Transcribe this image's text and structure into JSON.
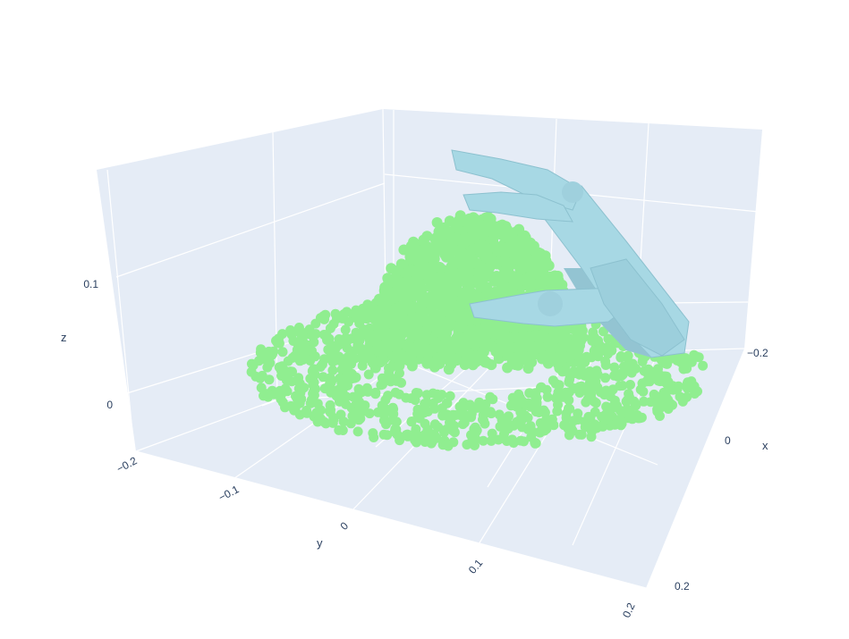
{
  "chart_data": {
    "type": "scatter3d",
    "title": "",
    "axes": {
      "x": {
        "title": "x",
        "ticks": [
          "−0.2",
          "0",
          "0.2"
        ],
        "range": [
          -0.2,
          0.2
        ]
      },
      "y": {
        "title": "y",
        "ticks": [
          "−0.2",
          "−0.1",
          "0",
          "0.1",
          "0.2"
        ],
        "range": [
          -0.2,
          0.2
        ]
      },
      "z": {
        "title": "z",
        "ticks": [
          "0",
          "0.1"
        ],
        "range": [
          -0.03,
          0.17
        ]
      }
    },
    "background_color": "#e5ecf6",
    "grid_color": "#ffffff",
    "grid": true,
    "series": [
      {
        "kind": "point-cloud",
        "color": "#90ee90",
        "shape": "dome on flat disk",
        "disk_radius": 0.2,
        "dome_radius": 0.09,
        "dome_height": 0.09
      },
      {
        "kind": "mesh",
        "color": "#a7d8e4",
        "shape": "robotic hand"
      }
    ]
  }
}
